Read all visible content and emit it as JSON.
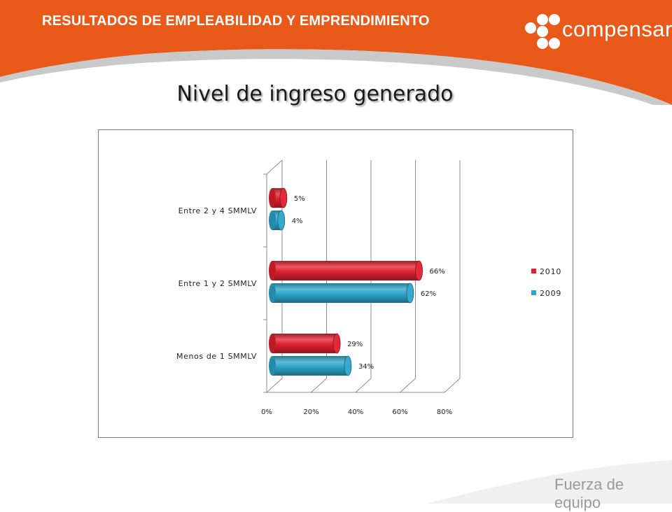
{
  "banner": {
    "title": "RESULTADOS DE EMPLEABILIDAD Y EMPRENDIMIENTO"
  },
  "logo": {
    "text": "compensar"
  },
  "slide": {
    "title": "Nivel de ingreso generado"
  },
  "footer": {
    "tagline": "Fuerza de equipo"
  },
  "colors": {
    "orange": "#e8591a",
    "bar_2010": "#e02030",
    "bar_2009": "#2ca4c9"
  },
  "chart_data": {
    "type": "bar",
    "orientation": "horizontal",
    "three_d": true,
    "categories": [
      "Entre 2 y 4 SMMLV",
      "Entre 1 y 2 SMMLV",
      "Menos de 1 SMMLV"
    ],
    "series": [
      {
        "name": "2010",
        "values": [
          5,
          66,
          29
        ],
        "labels": [
          "5%",
          "66%",
          "29%"
        ]
      },
      {
        "name": "2009",
        "values": [
          4,
          62,
          34
        ],
        "labels": [
          "4%",
          "62%",
          "34%"
        ]
      }
    ],
    "xticks": [
      "0%",
      "20%",
      "40%",
      "60%",
      "80%"
    ],
    "xlim": [
      0,
      80
    ],
    "grid": true,
    "legend": "right"
  }
}
